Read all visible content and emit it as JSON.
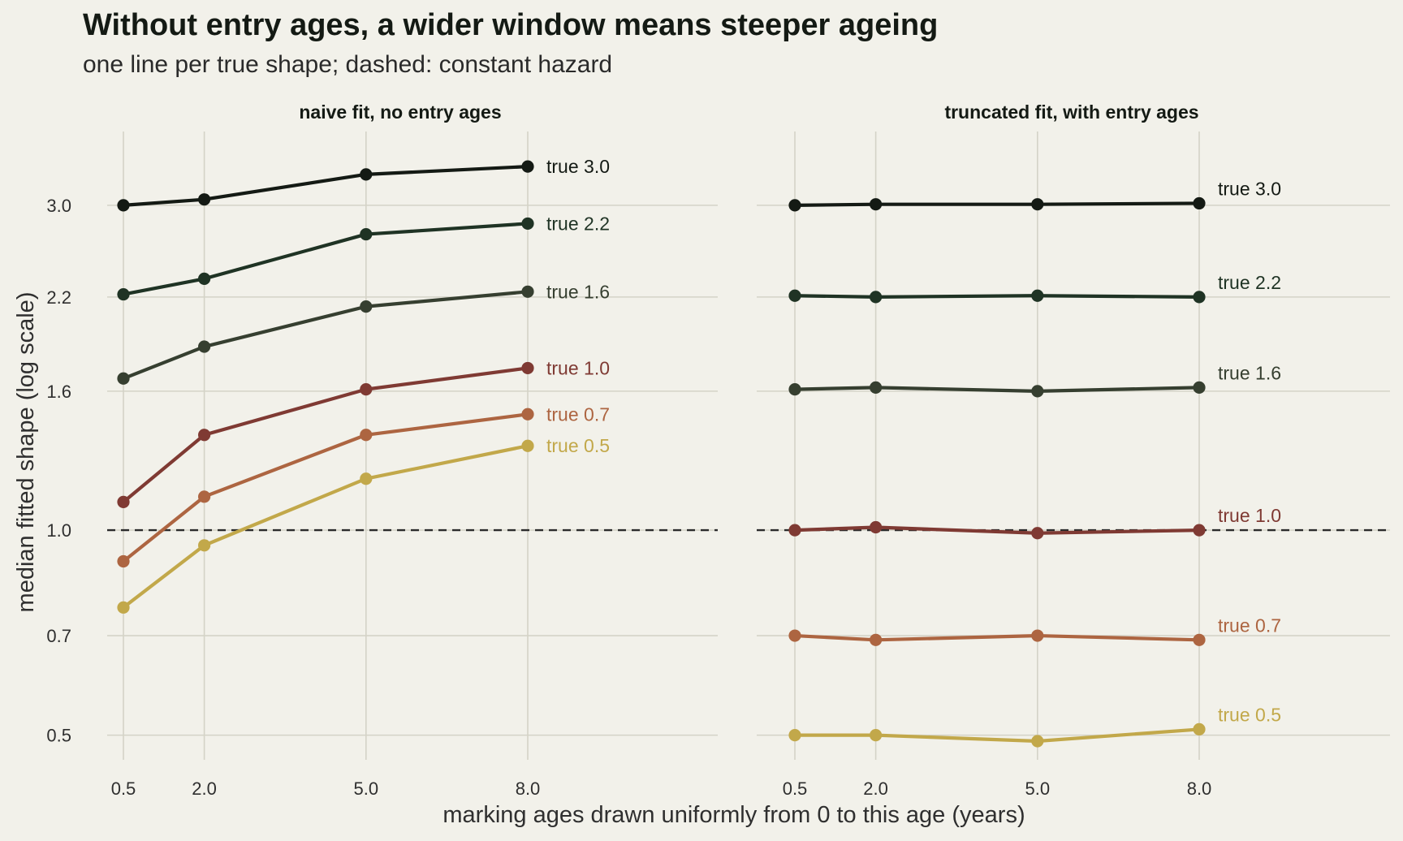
{
  "title": "Without entry ages, a wider window means steeper ageing",
  "subtitle": "one line per true shape; dashed: constant hazard",
  "xlabel": "marking ages drawn uniformly from 0 to this age (years)",
  "ylabel": "median fitted shape (log scale)",
  "chart_data": [
    {
      "type": "line",
      "title": "naive fit, no entry ages",
      "y_scale": "log",
      "ylim": [
        0.46,
        3.85
      ],
      "xlim": [
        0.0,
        11.8
      ],
      "x_ticks": [
        "0.5",
        "2.0",
        "5.0",
        "8.0"
      ],
      "y_ticks": [
        "0.5",
        "0.7",
        "1.0",
        "1.6",
        "2.2",
        "3.0"
      ],
      "reference_line": {
        "y": 1.0,
        "style": "dashed"
      },
      "x": [
        0.5,
        2.0,
        5.0,
        8.0
      ],
      "series": [
        {
          "name": "true 3.0",
          "color": "#141a14",
          "values": [
            3.0,
            3.06,
            3.33,
            3.42
          ]
        },
        {
          "name": "true 2.2",
          "color": "#1f3324",
          "values": [
            2.22,
            2.34,
            2.72,
            2.82
          ]
        },
        {
          "name": "true 1.6",
          "color": "#363f30",
          "values": [
            1.67,
            1.86,
            2.13,
            2.24
          ]
        },
        {
          "name": "true 1.0",
          "color": "#7f3a33",
          "values": [
            1.1,
            1.38,
            1.61,
            1.73
          ]
        },
        {
          "name": "true 0.7",
          "color": "#ad6541",
          "values": [
            0.9,
            1.12,
            1.38,
            1.48
          ]
        },
        {
          "name": "true 0.5",
          "color": "#c2a84a",
          "values": [
            0.77,
            0.95,
            1.19,
            1.33
          ]
        }
      ]
    },
    {
      "type": "line",
      "title": "truncated fit, with entry ages",
      "y_scale": "log",
      "ylim": [
        0.46,
        3.85
      ],
      "xlim": [
        0.0,
        11.8
      ],
      "x_ticks": [
        "0.5",
        "2.0",
        "5.0",
        "8.0"
      ],
      "y_ticks": [
        "0.5",
        "0.7",
        "1.0",
        "1.6",
        "2.2",
        "3.0"
      ],
      "reference_line": {
        "y": 1.0,
        "style": "dashed"
      },
      "x": [
        0.5,
        2.0,
        5.0,
        8.0
      ],
      "series": [
        {
          "name": "true 3.0",
          "color": "#141a14",
          "values": [
            3.0,
            3.01,
            3.01,
            3.02
          ]
        },
        {
          "name": "true 2.2",
          "color": "#1f3324",
          "values": [
            2.21,
            2.2,
            2.21,
            2.2
          ]
        },
        {
          "name": "true 1.6",
          "color": "#363f30",
          "values": [
            1.61,
            1.62,
            1.6,
            1.62
          ]
        },
        {
          "name": "true 1.0",
          "color": "#7f3a33",
          "values": [
            1.0,
            1.01,
            0.99,
            1.0
          ]
        },
        {
          "name": "true 0.7",
          "color": "#ad6541",
          "values": [
            0.7,
            0.69,
            0.7,
            0.69
          ]
        },
        {
          "name": "true 0.5",
          "color": "#c2a84a",
          "values": [
            0.5,
            0.5,
            0.49,
            0.51
          ]
        }
      ]
    }
  ]
}
